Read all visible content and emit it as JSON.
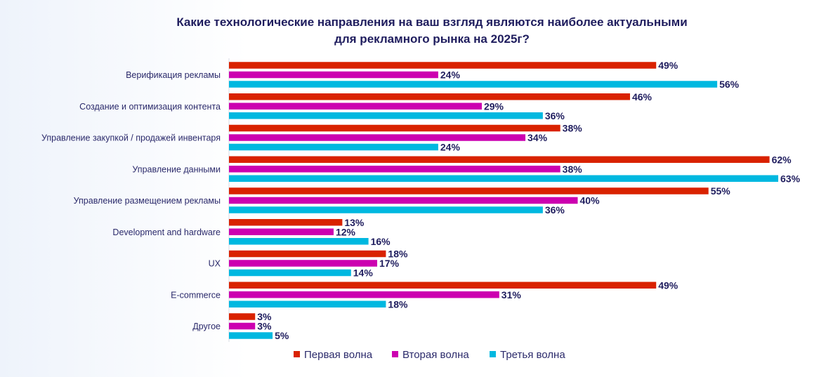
{
  "chart_data": {
    "type": "bar",
    "orientation": "horizontal",
    "title": "Какие технологические направления на ваш взгляд являются наиболее актуальными для рекламного рынка на 2025г?",
    "title_lines": [
      "Какие технологические направления на ваш взгляд являются наиболее актуальными",
      "для рекламного рынка на 2025г?"
    ],
    "categories": [
      "Верификация рекламы",
      "Создание и оптимизация контента",
      "Управление закупкой / продажей инвентаря",
      "Управление данными",
      "Управление размещением рекламы",
      "Development and hardware",
      "UX",
      "E-commerce",
      "Другое"
    ],
    "series": [
      {
        "name": "Первая волна",
        "color": "#d92200",
        "values": [
          49,
          46,
          38,
          62,
          55,
          13,
          18,
          49,
          3
        ]
      },
      {
        "name": "Вторая волна",
        "color": "#cc00b0",
        "values": [
          24,
          29,
          34,
          38,
          40,
          12,
          17,
          31,
          3
        ]
      },
      {
        "name": "Третья волна",
        "color": "#00b8e0",
        "values": [
          56,
          36,
          24,
          63,
          36,
          16,
          14,
          18,
          5
        ]
      }
    ],
    "value_suffix": "%",
    "xlim": [
      0,
      63
    ],
    "grid": false,
    "legend_position": "bottom"
  }
}
